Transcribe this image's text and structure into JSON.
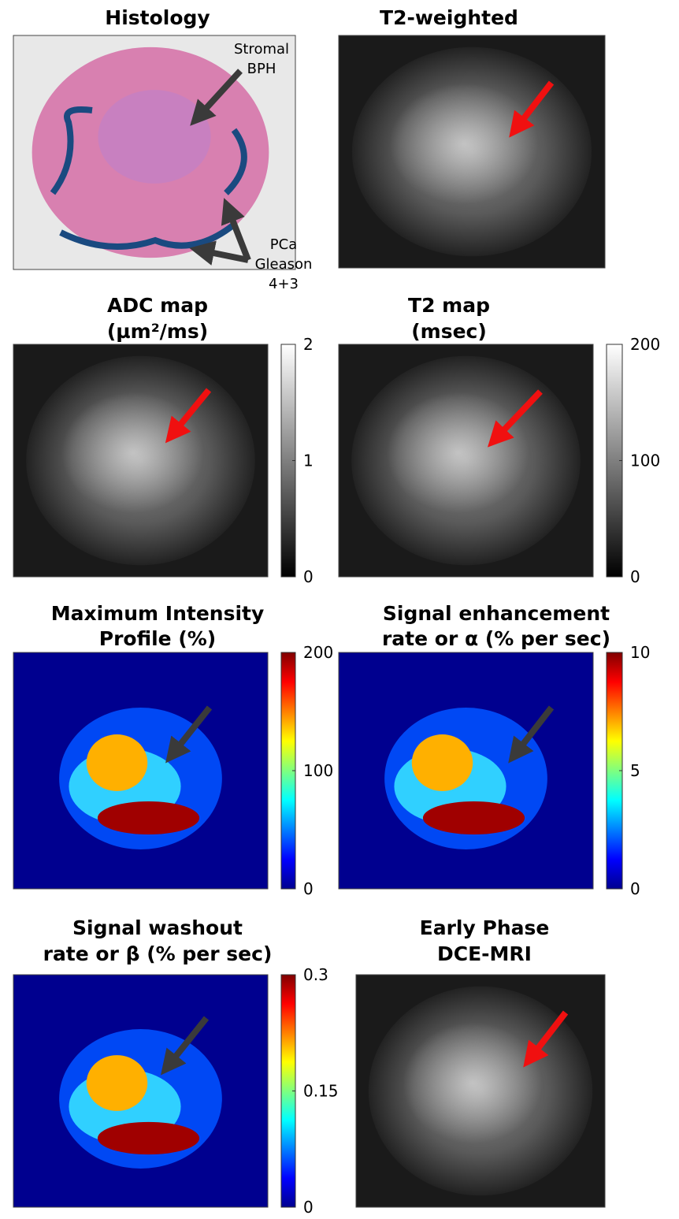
{
  "panels": [
    {
      "title": [
        "Histology"
      ],
      "annotations": [
        [
          "Stromal",
          "BPH"
        ],
        [
          "PCa",
          "Gleason",
          "4+3"
        ]
      ],
      "colormap": "histology"
    },
    {
      "title": [
        "T2-weighted"
      ],
      "colormap": "gray"
    },
    {
      "title": [
        "ADC map",
        "(µm²/ms)"
      ],
      "colormap": "gray",
      "colorbar_ticks": [
        0,
        1,
        2
      ]
    },
    {
      "title": [
        "T2 map",
        "(msec)"
      ],
      "colormap": "gray",
      "colorbar_ticks": [
        0,
        100,
        200
      ]
    },
    {
      "title": [
        "Maximum Intensity",
        "Profile (%)"
      ],
      "colormap": "jet",
      "colorbar_ticks": [
        0,
        100,
        200
      ]
    },
    {
      "title": [
        "Signal enhancement",
        "rate or α (% per sec)"
      ],
      "colormap": "jet",
      "colorbar_ticks": [
        0,
        5,
        10
      ]
    },
    {
      "title": [
        "Signal washout",
        "rate or β (% per sec)"
      ],
      "colormap": "jet",
      "colorbar_ticks": [
        0,
        0.15,
        0.3
      ]
    },
    {
      "title": [
        "Early Phase",
        "DCE-MRI"
      ],
      "colormap": "gray"
    }
  ]
}
